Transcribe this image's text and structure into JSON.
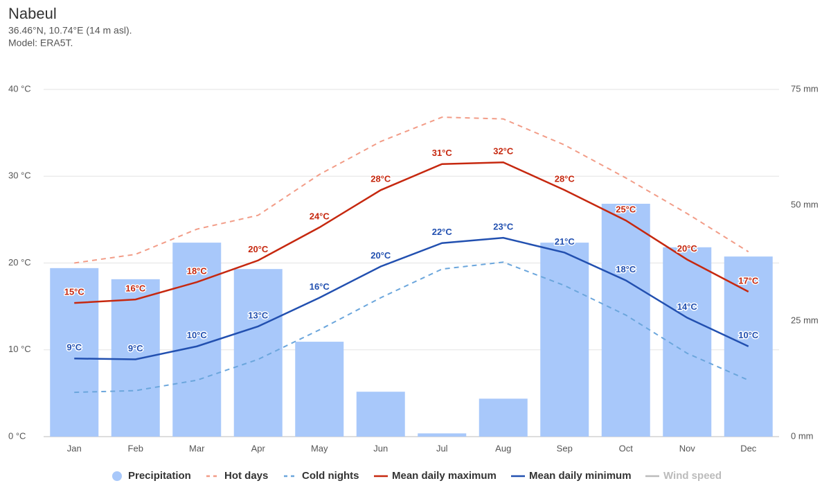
{
  "chart_data": {
    "type": "combo",
    "title": "Nabeul",
    "subtitle": [
      "36.46°N, 10.74°E (14 m asl).",
      "Model: ERA5T."
    ],
    "categories": [
      "Jan",
      "Feb",
      "Mar",
      "Apr",
      "May",
      "Jun",
      "Jul",
      "Aug",
      "Sep",
      "Oct",
      "Nov",
      "Dec"
    ],
    "ylim": [
      0,
      40
    ],
    "yticks": [
      {
        "value": 0,
        "label": "0 °C"
      },
      {
        "value": 10,
        "label": "10 °C"
      },
      {
        "value": 20,
        "label": "20 °C"
      },
      {
        "value": 30,
        "label": "30 °C"
      },
      {
        "value": 40,
        "label": "40 °C"
      }
    ],
    "y2lim": [
      0,
      75
    ],
    "y2ticks": [
      {
        "value": 0,
        "label": "0 mm"
      },
      {
        "value": 25,
        "label": "25 mm"
      },
      {
        "value": 50,
        "label": "50 mm"
      },
      {
        "value": 75,
        "label": "75 mm"
      }
    ],
    "grid": true,
    "series": [
      {
        "name": "Precipitation",
        "type": "bar",
        "axis": "y2",
        "color": "#a8c8fa",
        "values": [
          36.4,
          34.0,
          41.9,
          36.2,
          20.5,
          9.7,
          0.7,
          8.2,
          41.9,
          50.3,
          40.9,
          38.9
        ]
      },
      {
        "name": "Hot days",
        "type": "line",
        "dashed": true,
        "color": "#f29c87",
        "values": [
          20.0,
          21.0,
          23.9,
          25.5,
          30.2,
          34.0,
          36.8,
          36.6,
          33.6,
          29.8,
          25.7,
          21.3
        ]
      },
      {
        "name": "Cold nights",
        "type": "line",
        "dashed": true,
        "color": "#6ba6dc",
        "values": [
          5.1,
          5.3,
          6.5,
          8.9,
          12.3,
          16.0,
          19.3,
          20.1,
          17.4,
          14.0,
          9.6,
          6.5
        ]
      },
      {
        "name": "Mean daily maximum",
        "type": "line",
        "color": "#c6280f",
        "values": [
          15.4,
          15.8,
          17.8,
          20.3,
          24.1,
          28.4,
          31.4,
          31.6,
          28.4,
          24.9,
          20.4,
          16.7
        ],
        "value_labels": [
          "15°C",
          "16°C",
          "18°C",
          "20°C",
          "24°C",
          "28°C",
          "31°C",
          "32°C",
          "28°C",
          "25°C",
          "20°C",
          "17°C"
        ]
      },
      {
        "name": "Mean daily minimum",
        "type": "line",
        "color": "#2250b0",
        "values": [
          9.0,
          8.9,
          10.4,
          12.7,
          16.0,
          19.6,
          22.3,
          22.9,
          21.2,
          18.0,
          13.7,
          10.4
        ],
        "value_labels": [
          "9°C",
          "9°C",
          "10°C",
          "13°C",
          "16°C",
          "20°C",
          "22°C",
          "23°C",
          "21°C",
          "18°C",
          "14°C",
          "10°C"
        ]
      },
      {
        "name": "Wind speed",
        "type": "line",
        "hidden": true,
        "color": "#aaaaaa",
        "values": [
          null,
          null,
          null,
          null,
          null,
          null,
          null,
          null,
          null,
          null,
          null,
          null
        ]
      }
    ]
  }
}
